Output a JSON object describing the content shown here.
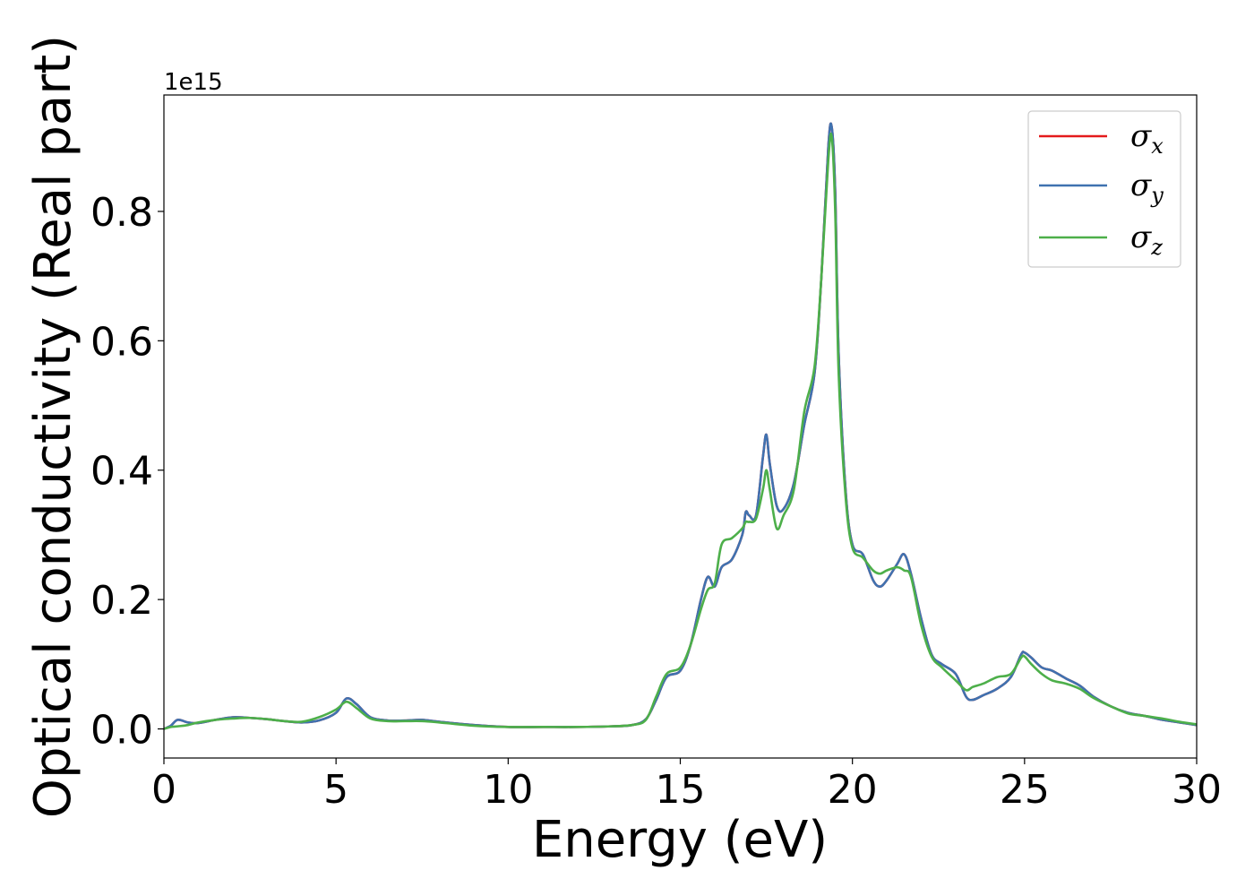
{
  "chart_data": {
    "type": "line",
    "xlabel": "Energy (eV)",
    "ylabel": "Optical conductivity (Real part)",
    "y_offset_label": "1e15",
    "y_scale": 1000000000000000.0,
    "xlim": [
      0,
      30
    ],
    "ylim": [
      -0.045,
      0.98
    ],
    "x_ticks": [
      0,
      5,
      10,
      15,
      20,
      25,
      30
    ],
    "x_tick_labels": [
      "0",
      "5",
      "10",
      "15",
      "20",
      "25",
      "30"
    ],
    "y_ticks": [
      0.0,
      0.2,
      0.4,
      0.6,
      0.8
    ],
    "y_tick_labels": [
      "0.0",
      "0.2",
      "0.4",
      "0.6",
      "0.8"
    ],
    "grid": false,
    "legend_position": "top-right",
    "series": [
      {
        "name": "σx",
        "symbol": "σ",
        "subscript": "x",
        "color": "#e41a1c",
        "x": [
          0,
          0.2,
          0.4,
          0.7,
          1.0,
          1.5,
          2.0,
          2.5,
          3.0,
          3.5,
          4.0,
          4.5,
          5.0,
          5.3,
          5.6,
          6.0,
          6.5,
          7.0,
          7.5,
          8.0,
          9.0,
          10.0,
          11.0,
          12.0,
          13.0,
          13.6,
          14.0,
          14.3,
          14.6,
          15.0,
          15.3,
          15.6,
          15.8,
          16.0,
          16.2,
          16.5,
          16.8,
          16.9,
          17.0,
          17.2,
          17.4,
          17.5,
          17.6,
          17.8,
          18.0,
          18.3,
          18.6,
          18.9,
          19.1,
          19.3,
          19.4,
          19.5,
          19.6,
          19.8,
          20.0,
          20.3,
          20.6,
          20.8,
          21.0,
          21.3,
          21.5,
          21.7,
          22.0,
          22.3,
          22.6,
          23.0,
          23.3,
          23.5,
          23.8,
          24.2,
          24.6,
          24.9,
          25.0,
          25.2,
          25.5,
          25.8,
          26.2,
          26.6,
          27.0,
          27.5,
          28.0,
          28.5,
          29.0,
          29.5,
          30.0
        ],
        "y": [
          0.0,
          0.005,
          0.014,
          0.01,
          0.009,
          0.014,
          0.018,
          0.017,
          0.015,
          0.012,
          0.01,
          0.013,
          0.025,
          0.047,
          0.038,
          0.018,
          0.013,
          0.013,
          0.014,
          0.011,
          0.006,
          0.003,
          0.003,
          0.003,
          0.004,
          0.006,
          0.015,
          0.045,
          0.08,
          0.09,
          0.13,
          0.2,
          0.235,
          0.22,
          0.25,
          0.262,
          0.3,
          0.335,
          0.33,
          0.33,
          0.42,
          0.455,
          0.41,
          0.345,
          0.34,
          0.38,
          0.47,
          0.55,
          0.7,
          0.9,
          0.93,
          0.83,
          0.58,
          0.37,
          0.285,
          0.27,
          0.23,
          0.22,
          0.23,
          0.255,
          0.27,
          0.24,
          0.17,
          0.115,
          0.1,
          0.085,
          0.05,
          0.045,
          0.052,
          0.062,
          0.08,
          0.115,
          0.118,
          0.11,
          0.095,
          0.09,
          0.078,
          0.067,
          0.05,
          0.035,
          0.025,
          0.02,
          0.014,
          0.01,
          0.006
        ]
      },
      {
        "name": "σy",
        "symbol": "σ",
        "subscript": "y",
        "color": "#3f72b0",
        "x": [
          0,
          0.2,
          0.4,
          0.7,
          1.0,
          1.5,
          2.0,
          2.5,
          3.0,
          3.5,
          4.0,
          4.5,
          5.0,
          5.3,
          5.6,
          6.0,
          6.5,
          7.0,
          7.5,
          8.0,
          9.0,
          10.0,
          11.0,
          12.0,
          13.0,
          13.6,
          14.0,
          14.3,
          14.6,
          15.0,
          15.3,
          15.6,
          15.8,
          16.0,
          16.2,
          16.5,
          16.8,
          16.9,
          17.0,
          17.2,
          17.4,
          17.5,
          17.6,
          17.8,
          18.0,
          18.3,
          18.6,
          18.9,
          19.1,
          19.3,
          19.4,
          19.5,
          19.6,
          19.8,
          20.0,
          20.3,
          20.6,
          20.8,
          21.0,
          21.3,
          21.5,
          21.7,
          22.0,
          22.3,
          22.6,
          23.0,
          23.3,
          23.5,
          23.8,
          24.2,
          24.6,
          24.9,
          25.0,
          25.2,
          25.5,
          25.8,
          26.2,
          26.6,
          27.0,
          27.5,
          28.0,
          28.5,
          29.0,
          29.5,
          30.0
        ],
        "y": [
          0.0,
          0.005,
          0.014,
          0.01,
          0.009,
          0.014,
          0.018,
          0.017,
          0.015,
          0.012,
          0.01,
          0.013,
          0.025,
          0.047,
          0.038,
          0.018,
          0.013,
          0.013,
          0.014,
          0.011,
          0.006,
          0.003,
          0.003,
          0.003,
          0.004,
          0.006,
          0.015,
          0.045,
          0.08,
          0.09,
          0.13,
          0.2,
          0.235,
          0.22,
          0.25,
          0.262,
          0.3,
          0.335,
          0.33,
          0.33,
          0.42,
          0.455,
          0.41,
          0.345,
          0.34,
          0.38,
          0.47,
          0.55,
          0.7,
          0.9,
          0.93,
          0.83,
          0.58,
          0.37,
          0.285,
          0.27,
          0.23,
          0.22,
          0.23,
          0.255,
          0.27,
          0.24,
          0.17,
          0.115,
          0.1,
          0.085,
          0.05,
          0.045,
          0.052,
          0.062,
          0.08,
          0.115,
          0.118,
          0.11,
          0.095,
          0.09,
          0.078,
          0.067,
          0.05,
          0.035,
          0.025,
          0.02,
          0.014,
          0.01,
          0.006
        ]
      },
      {
        "name": "σz",
        "symbol": "σ",
        "subscript": "z",
        "color": "#4daf4a",
        "x": [
          0,
          0.2,
          0.4,
          0.7,
          1.0,
          1.5,
          2.0,
          2.5,
          3.0,
          3.5,
          4.0,
          4.5,
          5.0,
          5.3,
          5.6,
          6.0,
          6.5,
          7.0,
          7.5,
          8.0,
          9.0,
          10.0,
          11.0,
          12.0,
          13.0,
          13.6,
          14.0,
          14.3,
          14.6,
          15.0,
          15.3,
          15.6,
          15.8,
          16.0,
          16.2,
          16.5,
          16.8,
          16.9,
          17.0,
          17.2,
          17.4,
          17.5,
          17.6,
          17.8,
          18.0,
          18.3,
          18.6,
          18.9,
          19.1,
          19.3,
          19.4,
          19.5,
          19.6,
          19.8,
          20.0,
          20.3,
          20.6,
          20.8,
          21.0,
          21.3,
          21.5,
          21.7,
          22.0,
          22.3,
          22.6,
          23.0,
          23.3,
          23.5,
          23.8,
          24.2,
          24.6,
          24.9,
          25.0,
          25.2,
          25.5,
          25.8,
          26.2,
          26.6,
          27.0,
          27.5,
          28.0,
          28.5,
          29.0,
          29.5,
          30.0
        ],
        "y": [
          0.0,
          0.003,
          0.004,
          0.006,
          0.01,
          0.014,
          0.016,
          0.017,
          0.015,
          0.012,
          0.011,
          0.018,
          0.03,
          0.042,
          0.032,
          0.016,
          0.012,
          0.012,
          0.012,
          0.01,
          0.005,
          0.003,
          0.003,
          0.003,
          0.004,
          0.006,
          0.014,
          0.05,
          0.085,
          0.095,
          0.13,
          0.185,
          0.215,
          0.225,
          0.285,
          0.295,
          0.31,
          0.32,
          0.32,
          0.325,
          0.37,
          0.4,
          0.37,
          0.31,
          0.33,
          0.37,
          0.49,
          0.56,
          0.7,
          0.88,
          0.915,
          0.8,
          0.55,
          0.36,
          0.28,
          0.265,
          0.245,
          0.24,
          0.245,
          0.25,
          0.245,
          0.235,
          0.16,
          0.112,
          0.095,
          0.075,
          0.06,
          0.065,
          0.07,
          0.08,
          0.085,
          0.11,
          0.112,
          0.1,
          0.085,
          0.075,
          0.07,
          0.062,
          0.048,
          0.035,
          0.024,
          0.02,
          0.016,
          0.011,
          0.007
        ]
      }
    ]
  }
}
